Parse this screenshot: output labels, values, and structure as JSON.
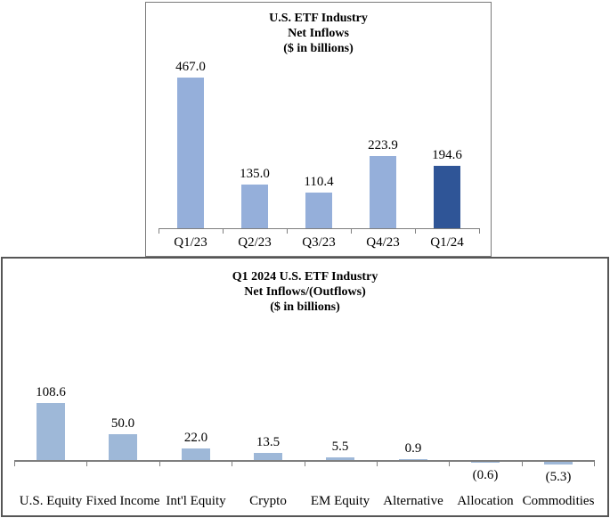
{
  "chart_data": [
    {
      "type": "bar",
      "title": "U.S. ETF Industry Net Inflows ($ in billions)",
      "title_lines": [
        "U.S. ETF Industry",
        "Net Inflows",
        "($ in billions)"
      ],
      "categories": [
        "Q1/23",
        "Q2/23",
        "Q3/23",
        "Q4/23",
        "Q1/24"
      ],
      "values": [
        467.0,
        135.0,
        110.4,
        223.9,
        194.6
      ],
      "value_labels": [
        "467.0",
        "135.0",
        "110.4",
        "223.9",
        "194.6"
      ],
      "bar_color": "#95AFDA",
      "highlight_index": 4,
      "highlight_color": "#2F5597",
      "xlabel": "",
      "ylabel": "",
      "ylim": [
        0,
        500
      ],
      "grid": false,
      "legend": "none"
    },
    {
      "type": "bar",
      "title": "Q1 2024 U.S. ETF Industry Net Inflows/(Outflows) ($ in billions)",
      "title_lines": [
        "Q1 2024 U.S. ETF Industry",
        "Net Inflows/(Outflows)",
        "($ in billions)"
      ],
      "categories": [
        "U.S. Equity",
        "Fixed Income",
        "Int'l Equity",
        "Crypto",
        "EM Equity",
        "Alternative",
        "Allocation",
        "Commodities"
      ],
      "values": [
        108.6,
        50.0,
        22.0,
        13.5,
        5.5,
        0.9,
        -0.6,
        -5.3
      ],
      "value_labels": [
        "108.6",
        "50.0",
        "22.0",
        "13.5",
        "5.5",
        "0.9",
        "(0.6)",
        "(5.3)"
      ],
      "bar_color": "#9EB8D8",
      "highlight_index": -1,
      "highlight_color": "#9EB8D8",
      "xlabel": "",
      "ylabel": "",
      "ylim": [
        -20,
        120
      ],
      "grid": false,
      "legend": "none"
    }
  ],
  "colors": {
    "axis": "#7f7f7f",
    "top_box_border": "#7a7a7a",
    "bottom_box_border": "#565656",
    "light_bar_top": "#95AFDA",
    "light_bar_bottom": "#9EB8D8",
    "highlight_bar": "#2F5597",
    "text": "#000000",
    "background": "#ffffff"
  }
}
